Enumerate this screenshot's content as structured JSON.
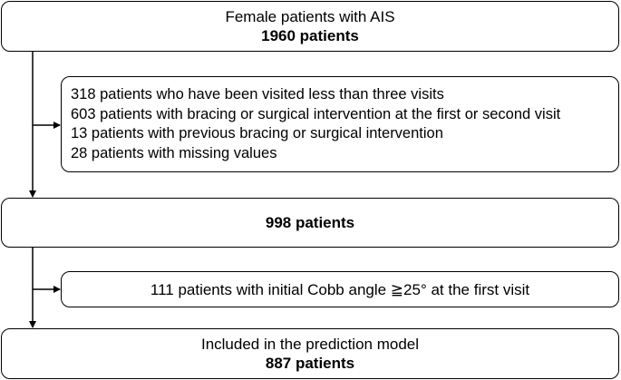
{
  "flow": {
    "start": {
      "title": "Female patients with AIS",
      "count": "1960 patients"
    },
    "exclusion_1": {
      "items": [
        "318 patients who have been visited less than three visits",
        "603 patients with bracing or surgical intervention at the first or second visit",
        "13 patients with previous bracing or surgical intervention",
        "28 patients with missing values"
      ]
    },
    "middle": {
      "count": "998 patients"
    },
    "exclusion_2": {
      "text": "111 patients with initial Cobb angle ≧25°  at the first visit"
    },
    "final": {
      "title": "Included in the prediction model",
      "count": "887 patients"
    }
  },
  "colors": {
    "stroke": "#000000",
    "background": "#ffffff"
  }
}
